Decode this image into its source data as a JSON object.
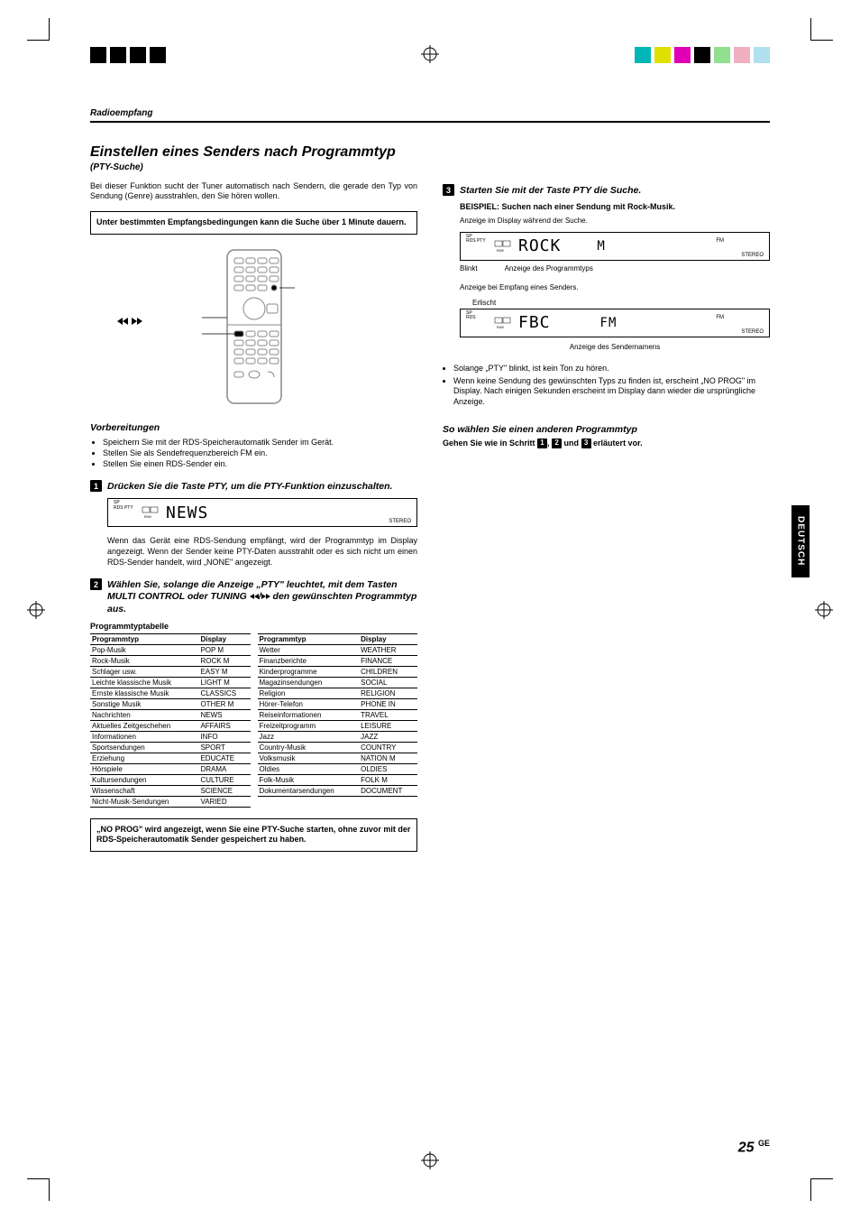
{
  "registration": {
    "black_squares": [
      "#000000",
      "#000000",
      "#000000",
      "#000000"
    ],
    "color_squares": [
      "#00b6e0",
      "#e0e000",
      "#e000b6",
      "#b6e000",
      "#e0b680",
      "#b6b6e0"
    ]
  },
  "header": {
    "section": "Radioempfang"
  },
  "left": {
    "title": "Einstellen eines Senders nach Programmtyp",
    "subtitle": "(PTY-Suche)",
    "intro": "Bei dieser Funktion sucht der Tuner automatisch nach Sendern, die gerade den Typ von Sendung (Genre) ausstrahlen, den Sie hören wollen.",
    "box": "Unter bestimmten Empfangsbedingungen kann die Suche über 1 Minute dauern.",
    "remote_buttons_label_left": "◄◄",
    "remote_buttons_label_right": "►►",
    "prep_head": "Vorbereitungen",
    "prep_items": [
      "Speichern Sie mit der RDS-Speicherautomatik Sender im Gerät.",
      "Stellen Sie als Sendefrequenzbereich FM ein.",
      "Stellen Sie einen RDS-Sender ein."
    ],
    "step1_title": "Drücken Sie die Taste PTY, um die PTY-Funktion einzuschalten.",
    "lcd1": "NEWS",
    "lcd1_right": "STEREO",
    "step1_para": "Wenn das Gerät eine RDS-Sendung empfängt, wird der Programmtyp im Display angezeigt. Wenn der Sender keine PTY-Daten ausstrahlt oder es sich nicht um einen RDS-Sender handelt, wird „NONE\" angezeigt.",
    "step2_title_a": "Wählen Sie, solange die Anzeige „PTY\" leuchtet, mit dem Tasten MULTI CONTROL oder TUNING ",
    "step2_title_b": " den gewünschten Programmtyp aus.",
    "table_title": "Programmtyptabelle",
    "table_head_type": "Programmtyp",
    "table_head_disp": "Display",
    "table_left": [
      [
        "Pop-Musik",
        "POP M"
      ],
      [
        "Rock-Musik",
        "ROCK M"
      ],
      [
        "Schlager usw.",
        "EASY M"
      ],
      [
        "Leichte klassische Musik",
        "LIGHT M"
      ],
      [
        "Ernste klassische Musik",
        "CLASSICS"
      ],
      [
        "Sonstige Musik",
        "OTHER M"
      ],
      [
        "Nachrichten",
        "NEWS"
      ],
      [
        "Aktuelles Zeitgeschehen",
        "AFFAIRS"
      ],
      [
        "Informationen",
        "INFO"
      ],
      [
        "Sportsendungen",
        "SPORT"
      ],
      [
        "Erziehung",
        "EDUCATE"
      ],
      [
        "Hörspiele",
        "DRAMA"
      ],
      [
        "Kultursendungen",
        "CULTURE"
      ],
      [
        "Wissenschaft",
        "SCIENCE"
      ],
      [
        "Nicht-Musik-Sendungen",
        "VARIED"
      ]
    ],
    "table_right": [
      [
        "Wetter",
        "WEATHER"
      ],
      [
        "Finanzberichte",
        "FINANCE"
      ],
      [
        "Kinderprogramme",
        "CHILDREN"
      ],
      [
        "Magazinsendungen",
        "SOCIAL"
      ],
      [
        "Religion",
        "RELIGION"
      ],
      [
        "Hörer-Telefon",
        "PHONE IN"
      ],
      [
        "Reiseinformationen",
        "TRAVEL"
      ],
      [
        "Freizeitprogramm",
        "LEISURE"
      ],
      [
        "Jazz",
        "JAZZ"
      ],
      [
        "Country-Musik",
        "COUNTRY"
      ],
      [
        "Volksmusik",
        "NATION M"
      ],
      [
        "Oldies",
        "OLDIES"
      ],
      [
        "Folk-Musik",
        "FOLK M"
      ],
      [
        "Dokumentarsendungen",
        "DOCUMENT"
      ]
    ],
    "box2": "„NO PROG\" wird angezeigt, wenn Sie eine PTY-Suche starten, ohne zuvor mit der RDS-Speicherautomatik Sender gespeichert zu haben."
  },
  "right": {
    "step3_title": "Starten Sie mit der Taste PTY die Suche.",
    "example_head": "BEISPIEL: Suchen nach einer Sendung mit Rock-Musik.",
    "example_sub": "Anzeige im Display während der Suche.",
    "lcd2_main": "ROCK",
    "lcd2_right": "M",
    "lcd2_fm": "FM",
    "lcd2_stereo": "STEREO",
    "label_blinkt": "Blinkt",
    "label_progtype": "Anzeige des Programmtyps",
    "recv_caption": "Anzeige bei Empfang eines Senders.",
    "label_erlischt": "Erlischt",
    "lcd3_main": "FBC",
    "lcd3_right": "FM",
    "lcd3_fm": "FM",
    "lcd3_stereo": "STEREO",
    "label_sendername": "Anzeige des Sendernamens",
    "notes": [
      "Solange „PTY\" blinkt, ist kein Ton zu hören.",
      "Wenn keine Sendung des gewünschten Typs zu finden ist, erscheint „NO PROG\" im Display. Nach einigen Sekunden erscheint im Display dann wieder die ursprüngliche Anzeige."
    ],
    "other_head": "So wählen Sie einen anderen Programmtyp",
    "other_instr_a": "Gehen Sie wie in Schritt ",
    "other_instr_b": " und ",
    "other_instr_c": " erläutert vor."
  },
  "tab": "DEUTSCH",
  "page_number": "25",
  "page_suffix": "GE",
  "colors": {
    "black": "#000000",
    "white": "#ffffff"
  }
}
